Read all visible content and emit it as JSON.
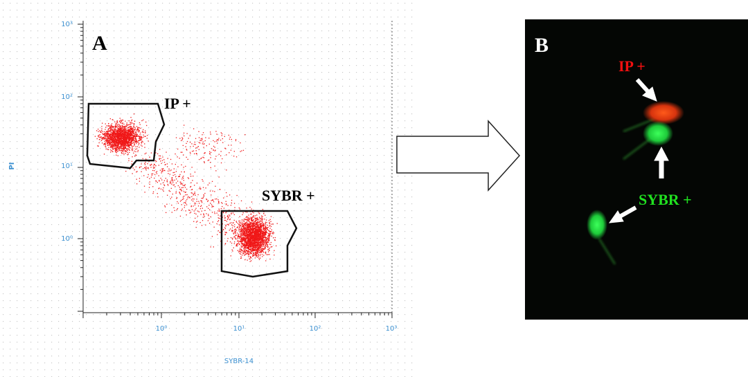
{
  "panel_a": {
    "label": "A",
    "y_axis_title": "PI",
    "x_axis_title": "SYBR-14",
    "y_tick_labels": [
      "10³",
      "10²",
      "10¹",
      "10⁰"
    ],
    "x_tick_labels": [
      "10⁰",
      "10¹",
      "10²",
      "10³"
    ],
    "gates": [
      "IP +",
      "SYBR +"
    ]
  },
  "panel_b": {
    "label": "B",
    "annotations": [
      "IP +",
      "SYBR +"
    ]
  }
}
